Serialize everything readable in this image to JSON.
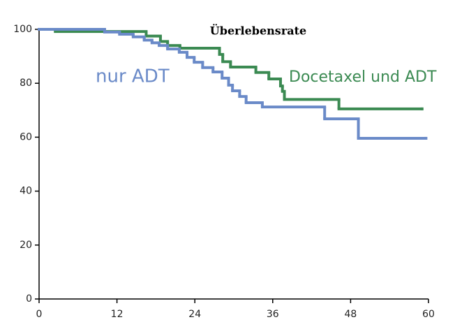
{
  "chart_data": {
    "type": "step",
    "title": "Überlebensrate",
    "xlim": [
      0,
      60
    ],
    "xticks": [
      0,
      12,
      24,
      36,
      48,
      60
    ],
    "ylim": [
      0,
      100
    ],
    "yticks": [
      0,
      20,
      40,
      60,
      80,
      100
    ],
    "series": [
      {
        "name": "nur ADT",
        "color": "#6a8ac8",
        "x": [
          0,
          10.1,
          12.4,
          14.5,
          16.2,
          17.4,
          18.5,
          19.8,
          21.6,
          22.8,
          23.9,
          25.2,
          26.8,
          28.2,
          29.2,
          29.8,
          30.9,
          31.9,
          34.4,
          44,
          49.2,
          59.6
        ],
        "values": [
          100,
          99,
          98.2,
          97.2,
          96,
          95,
          94,
          92.7,
          91.5,
          89.6,
          87.8,
          85.8,
          84.2,
          81.9,
          79.3,
          77.2,
          75.1,
          72.8,
          71.2,
          66.8,
          59.6,
          59.6
        ]
      },
      {
        "name": "Docetaxel und ADT",
        "color": "#3b8a52",
        "x": [
          0,
          2.5,
          16.5,
          18.7,
          19.8,
          21.7,
          27.8,
          28.3,
          29.5,
          33.4,
          35.4,
          37.2,
          37.5,
          37.8,
          46.2,
          59
        ],
        "values": [
          100,
          99.2,
          97.5,
          95.5,
          94,
          93,
          90.7,
          88,
          86,
          84,
          81.6,
          79,
          77,
          74,
          70.5,
          70.5
        ]
      }
    ]
  }
}
